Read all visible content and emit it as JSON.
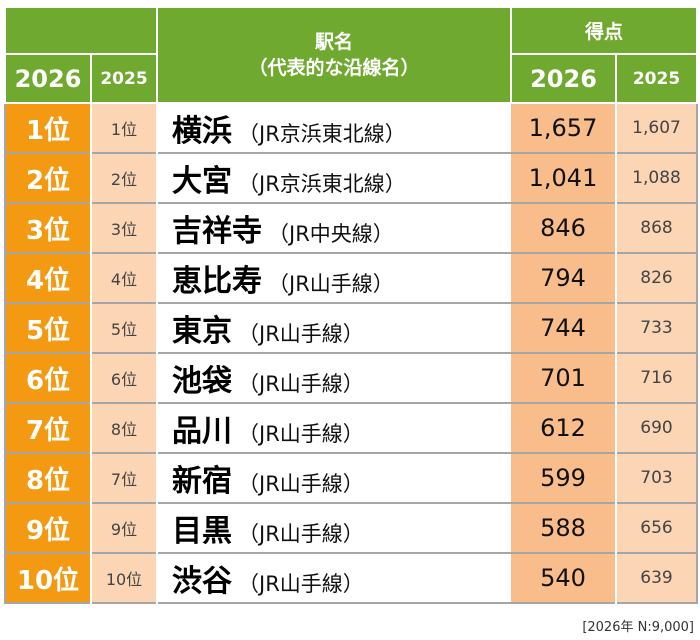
{
  "header": {
    "rank_2026": "2026",
    "rank_2025": "2025",
    "station_title": "駅名",
    "station_subtitle": "（代表的な沿線名）",
    "score_title": "得点",
    "score_2026": "2026",
    "score_2025": "2025"
  },
  "rows": [
    {
      "rank_2026": "1位",
      "rank_2025": "1位",
      "station": "横浜",
      "line": "（JR京浜東北線）",
      "score_2026": "1,657",
      "score_2025": "1,607"
    },
    {
      "rank_2026": "2位",
      "rank_2025": "2位",
      "station": "大宮",
      "line": "（JR京浜東北線）",
      "score_2026": "1,041",
      "score_2025": "1,088"
    },
    {
      "rank_2026": "3位",
      "rank_2025": "3位",
      "station": "吉祥寺",
      "line": "（JR中央線）",
      "score_2026": "846",
      "score_2025": "868"
    },
    {
      "rank_2026": "4位",
      "rank_2025": "4位",
      "station": "恵比寿",
      "line": "（JR山手線）",
      "score_2026": "794",
      "score_2025": "826"
    },
    {
      "rank_2026": "5位",
      "rank_2025": "5位",
      "station": "東京",
      "line": "（JR山手線）",
      "score_2026": "744",
      "score_2025": "733"
    },
    {
      "rank_2026": "6位",
      "rank_2025": "6位",
      "station": "池袋",
      "line": "（JR山手線）",
      "score_2026": "701",
      "score_2025": "716"
    },
    {
      "rank_2026": "7位",
      "rank_2025": "8位",
      "station": "品川",
      "line": "（JR山手線）",
      "score_2026": "612",
      "score_2025": "690"
    },
    {
      "rank_2026": "8位",
      "rank_2025": "7位",
      "station": "新宿",
      "line": "（JR山手線）",
      "score_2026": "599",
      "score_2025": "703"
    },
    {
      "rank_2026": "9位",
      "rank_2025": "9位",
      "station": "目黒",
      "line": "（JR山手線）",
      "score_2026": "588",
      "score_2025": "656"
    },
    {
      "rank_2026": "10位",
      "rank_2025": "10位",
      "station": "渋谷",
      "line": "（JR山手線）",
      "score_2026": "540",
      "score_2025": "639"
    }
  ],
  "note": "[2026年 N:9,000]",
  "colors": {
    "header": "#70a92f",
    "rank_2026": "#f39a12",
    "light": "#fcd5b4",
    "score_2026": "#f8bd8b",
    "border": "#a6a6a6"
  },
  "chart_data": {
    "type": "table",
    "columns": [
      "2026",
      "2025",
      "駅名（代表的な沿線名）",
      "得点 2026",
      "得点 2025"
    ],
    "rows": [
      [
        "1位",
        "1位",
        "横浜（JR京浜東北線）",
        1657,
        1607
      ],
      [
        "2位",
        "2位",
        "大宮（JR京浜東北線）",
        1041,
        1088
      ],
      [
        "3位",
        "3位",
        "吉祥寺（JR中央線）",
        846,
        868
      ],
      [
        "4位",
        "4位",
        "恵比寿（JR山手線）",
        794,
        826
      ],
      [
        "5位",
        "5位",
        "東京（JR山手線）",
        744,
        733
      ],
      [
        "6位",
        "6位",
        "池袋（JR山手線）",
        701,
        716
      ],
      [
        "7位",
        "8位",
        "品川（JR山手線）",
        612,
        690
      ],
      [
        "8位",
        "7位",
        "新宿（JR山手線）",
        599,
        703
      ],
      [
        "9位",
        "9位",
        "目黒（JR山手線）",
        588,
        656
      ],
      [
        "10位",
        "10位",
        "渋谷（JR山手線）",
        540,
        639
      ]
    ]
  }
}
